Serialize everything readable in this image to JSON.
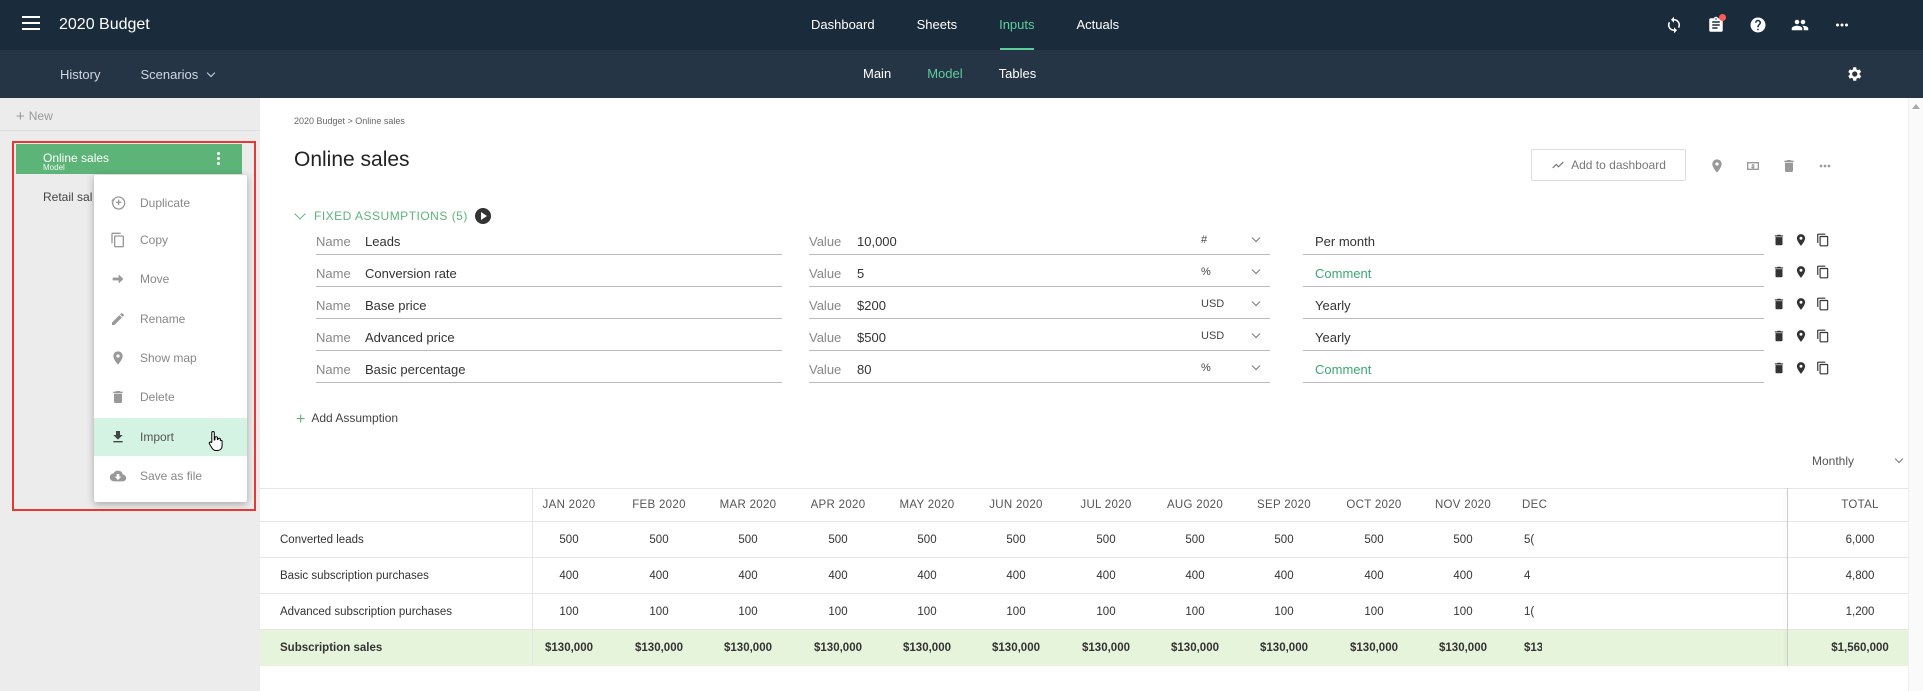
{
  "app_title": "2020 Budget",
  "top_nav": [
    "Dashboard",
    "Sheets",
    "Inputs",
    "Actuals"
  ],
  "sub_left": [
    "History",
    "Scenarios"
  ],
  "sub_nav": [
    "Main",
    "Model",
    "Tables"
  ],
  "sidebar": {
    "new_label": "New",
    "active_item": {
      "title": "Online sales",
      "subtitle": "Model"
    },
    "second_item": "Retail sal"
  },
  "context_menu": [
    "Duplicate",
    "Copy",
    "Move",
    "Rename",
    "Show map",
    "Delete",
    "Import",
    "Save as file"
  ],
  "breadcrumb": "2020 Budget > Online sales",
  "page_title": "Online sales",
  "add_dashboard_label": "Add to dashboard",
  "fixed_assumptions_label": "FIXED ASSUMPTIONS (5)",
  "name_label": "Name",
  "value_label": "Value",
  "assumptions": [
    {
      "name": "Leads",
      "value": "10,000",
      "unit": "#",
      "comment": "Per month",
      "comment_placeholder": false
    },
    {
      "name": "Conversion rate",
      "value": "5",
      "unit": "%",
      "comment": "Comment",
      "comment_placeholder": true
    },
    {
      "name": "Base price",
      "value": "$200",
      "unit": "USD",
      "comment": "Yearly",
      "comment_placeholder": false
    },
    {
      "name": "Advanced price",
      "value": "$500",
      "unit": "USD",
      "comment": "Yearly",
      "comment_placeholder": false
    },
    {
      "name": "Basic percentage",
      "value": "80",
      "unit": "%",
      "comment": "Comment",
      "comment_placeholder": true
    }
  ],
  "add_assumption_label": "Add Assumption",
  "period_select": "Monthly",
  "table": {
    "columns": [
      "JAN 2020",
      "FEB 2020",
      "MAR 2020",
      "APR 2020",
      "MAY 2020",
      "JUN 2020",
      "JUL 2020",
      "AUG 2020",
      "SEP 2020",
      "OCT 2020",
      "NOV 2020",
      "DEC",
      "TOTAL"
    ],
    "rows": [
      {
        "label": "Converted leads",
        "values": [
          "500",
          "500",
          "500",
          "500",
          "500",
          "500",
          "500",
          "500",
          "500",
          "500",
          "500",
          "5(",
          "6,000"
        ]
      },
      {
        "label": "Basic subscription purchases",
        "values": [
          "400",
          "400",
          "400",
          "400",
          "400",
          "400",
          "400",
          "400",
          "400",
          "400",
          "400",
          "4",
          "4,800"
        ]
      },
      {
        "label": "Advanced subscription purchases",
        "values": [
          "100",
          "100",
          "100",
          "100",
          "100",
          "100",
          "100",
          "100",
          "100",
          "100",
          "100",
          "1(",
          "1,200"
        ]
      },
      {
        "label": "Subscription sales",
        "values": [
          "$130,000",
          "$130,000",
          "$130,000",
          "$130,000",
          "$130,000",
          "$130,000",
          "$130,000",
          "$130,000",
          "$130,000",
          "$130,000",
          "$130,000",
          "$13(",
          "$1,560,000"
        ]
      }
    ]
  }
}
